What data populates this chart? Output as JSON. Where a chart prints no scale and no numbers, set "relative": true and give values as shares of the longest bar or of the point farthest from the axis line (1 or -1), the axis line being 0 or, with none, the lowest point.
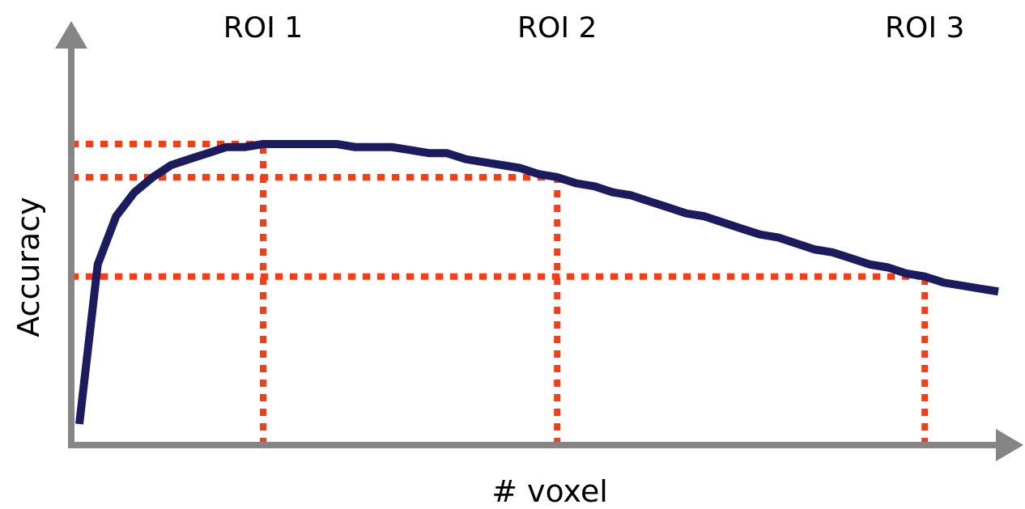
{
  "chart_data": {
    "type": "line",
    "relative": true,
    "xlabel": "# voxel",
    "ylabel": "Accuracy",
    "categories": [
      null,
      null,
      null,
      null,
      null,
      null,
      null,
      null,
      null,
      null,
      "ROI 1",
      null,
      null,
      null,
      null,
      null,
      null,
      null,
      null,
      null,
      null,
      null,
      null,
      null,
      null,
      null,
      "ROI 2",
      null,
      null,
      null,
      null,
      null,
      null,
      null,
      null,
      null,
      null,
      null,
      null,
      null,
      null,
      null,
      null,
      null,
      null,
      null,
      "ROI 3",
      null,
      null,
      null,
      null
    ],
    "series": [
      {
        "color": "#1b1b60",
        "values": [
          0.07,
          0.6,
          0.76,
          0.84,
          0.89,
          0.93,
          0.95,
          0.97,
          0.99,
          0.99,
          1.0,
          1.0,
          1.0,
          1.0,
          1.0,
          0.99,
          0.99,
          0.99,
          0.98,
          0.97,
          0.97,
          0.95,
          0.94,
          0.93,
          0.92,
          0.9,
          0.89,
          0.87,
          0.86,
          0.84,
          0.83,
          0.81,
          0.79,
          0.77,
          0.76,
          0.74,
          0.72,
          0.7,
          0.69,
          0.67,
          0.65,
          0.64,
          0.62,
          0.6,
          0.59,
          0.57,
          0.56,
          0.54,
          0.53,
          0.52,
          0.51
        ]
      }
    ]
  }
}
